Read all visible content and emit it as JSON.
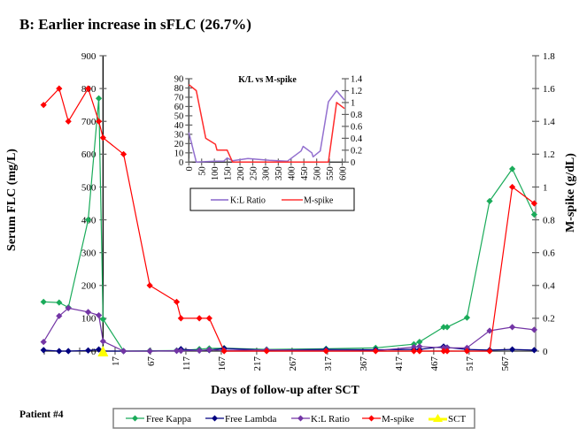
{
  "figure": {
    "patient_label": "Patient #4"
  },
  "chart_data": [
    {
      "type": "line",
      "title": "B: Earlier increase in sFLC (26.7%)",
      "xlabel": "Days of follow-up after SCT",
      "ylabel": "Serum FLC (mg/L)",
      "y2label": "M-spike (g/dL)",
      "xlim": [
        -83,
        611
      ],
      "ylim": [
        0,
        900
      ],
      "y2lim": [
        0,
        1.8
      ],
      "yaxis_crosses_at": 0,
      "grid": false,
      "legend": "bottom",
      "xticks": [
        -83,
        -33,
        17,
        67,
        117,
        167,
        217,
        267,
        317,
        367,
        417,
        467,
        517,
        567
      ],
      "xtick_labels": [
        "",
        "",
        "17",
        "67",
        "117",
        "167",
        "217",
        "267",
        "317",
        "367",
        "417",
        "467",
        "517",
        "567"
      ],
      "yticks": [
        0,
        100,
        200,
        300,
        400,
        500,
        600,
        700,
        800,
        900
      ],
      "ytick_labels": [
        "0",
        "100",
        "200",
        "300",
        "400",
        "500",
        "600",
        "700",
        "800",
        "900"
      ],
      "y2ticks": [
        0,
        0.2,
        0.4,
        0.6,
        0.8,
        1.0,
        1.2,
        1.4,
        1.6,
        1.8
      ],
      "y2tick_labels": [
        "0",
        "0.2",
        "0.4",
        "0.6",
        "0.8",
        "1",
        "1.2",
        "1.4",
        "1.6",
        "1.8"
      ],
      "series": [
        {
          "name": "Free Kappa",
          "axis": "left",
          "color": "#1aab5a",
          "marker": "diamond",
          "x": [
            -84,
            -62,
            -49,
            -21,
            -6,
            0,
            29,
            66,
            104,
            110,
            136,
            150,
            171,
            231,
            315,
            385,
            439,
            447,
            481,
            486,
            514,
            546,
            578,
            609
          ],
          "values": [
            150,
            148,
            133,
            400,
            770,
            97,
            0,
            1,
            2,
            2,
            6,
            8,
            9,
            5,
            7,
            10,
            21,
            28,
            73,
            73,
            102,
            457,
            555,
            416
          ]
        },
        {
          "name": "Free Lambda",
          "axis": "left",
          "color": "#000080",
          "marker": "diamond",
          "x": [
            -84,
            -62,
            -49,
            -21,
            -6,
            0,
            29,
            66,
            104,
            110,
            136,
            150,
            171,
            231,
            315,
            385,
            439,
            447,
            481,
            486,
            514,
            546,
            578,
            609
          ],
          "values": [
            3,
            0,
            0,
            2,
            5,
            0,
            0,
            0,
            1,
            6,
            2,
            3,
            8,
            3,
            5,
            4,
            5,
            5,
            14,
            11,
            5,
            3,
            5,
            3
          ]
        },
        {
          "name": "K:L Ratio",
          "axis": "left",
          "color": "#7335a5",
          "marker": "diamond",
          "x": [
            -84,
            -62,
            -49,
            -21,
            -6,
            0,
            29,
            66,
            104,
            110,
            136,
            150,
            171,
            231,
            315,
            385,
            439,
            447,
            481,
            486,
            514,
            546,
            578,
            609
          ],
          "values": [
            28,
            107,
            131,
            119,
            109,
            30,
            0,
            0,
            1,
            1,
            2,
            4,
            2,
            4,
            2,
            1,
            12,
            14,
            10,
            10,
            10,
            62,
            73,
            65
          ]
        },
        {
          "name": "M-spike",
          "axis": "right",
          "color": "#ff0000",
          "marker": "diamond",
          "x": [
            -84,
            -62,
            -49,
            -21,
            -6,
            0,
            29,
            66,
            104,
            110,
            136,
            150,
            171,
            231,
            315,
            385,
            439,
            447,
            481,
            486,
            514,
            546,
            578,
            609
          ],
          "values": [
            1.5,
            1.6,
            1.4,
            1.6,
            1.4,
            1.3,
            1.2,
            0.4,
            0.3,
            0.2,
            0.2,
            0.2,
            0,
            0,
            0,
            0,
            0,
            0,
            0,
            0,
            0,
            0,
            1.0,
            0.9
          ]
        },
        {
          "name": "SCT",
          "axis": "left",
          "color": "#ffff00",
          "marker": "triangle",
          "x": [
            0
          ],
          "values": [
            0
          ]
        }
      ]
    },
    {
      "type": "line",
      "title": "K/L vs M-spike",
      "xlabel": "",
      "ylabel": "",
      "y2label": "",
      "xlim": [
        0,
        612
      ],
      "ylim": [
        0,
        90
      ],
      "y2lim": [
        0,
        1.4
      ],
      "yaxis_crosses_at": 0,
      "grid": false,
      "legend": "bottom",
      "xticks": [
        0,
        50,
        100,
        150,
        200,
        250,
        300,
        350,
        400,
        450,
        500,
        550,
        600
      ],
      "xtick_labels": [
        "0",
        "50",
        "100",
        "150",
        "200",
        "250",
        "300",
        "350",
        "400",
        "450",
        "500",
        "550",
        "600"
      ],
      "yticks": [
        0,
        10,
        20,
        30,
        40,
        50,
        60,
        70,
        80,
        90
      ],
      "ytick_labels": [
        "0",
        "10",
        "20",
        "30",
        "40",
        "50",
        "60",
        "70",
        "80",
        "90"
      ],
      "y2ticks": [
        0,
        0.2,
        0.4,
        0.6,
        0.8,
        1.0,
        1.2,
        1.4
      ],
      "y2tick_labels": [
        "0",
        "0.2",
        "0.4",
        "0.6",
        "0.8",
        "1",
        "1.2",
        "1.4"
      ],
      "series": [
        {
          "name": "K:L Ratio",
          "axis": "left",
          "color": "#9370cf",
          "marker": "none",
          "x": [
            0,
            29,
            66,
            104,
            110,
            136,
            150,
            171,
            231,
            315,
            385,
            439,
            447,
            481,
            486,
            514,
            546,
            578,
            609
          ],
          "values": [
            32,
            0,
            0.5,
            1,
            1,
            1,
            4.4,
            1.5,
            3.8,
            2,
            1,
            12,
            17,
            10,
            5.7,
            12,
            65,
            77,
            67
          ]
        },
        {
          "name": "M-spike",
          "axis": "right",
          "color": "#ff2b2b",
          "marker": "none",
          "x": [
            0,
            29,
            66,
            104,
            110,
            136,
            150,
            171,
            231,
            315,
            385,
            439,
            447,
            481,
            486,
            514,
            546,
            578,
            609
          ],
          "values": [
            1.3,
            1.2,
            0.4,
            0.3,
            0.2,
            0.2,
            0.2,
            0,
            0,
            0,
            0,
            0,
            0,
            0,
            0,
            0,
            0,
            1.0,
            0.9
          ]
        }
      ]
    }
  ]
}
